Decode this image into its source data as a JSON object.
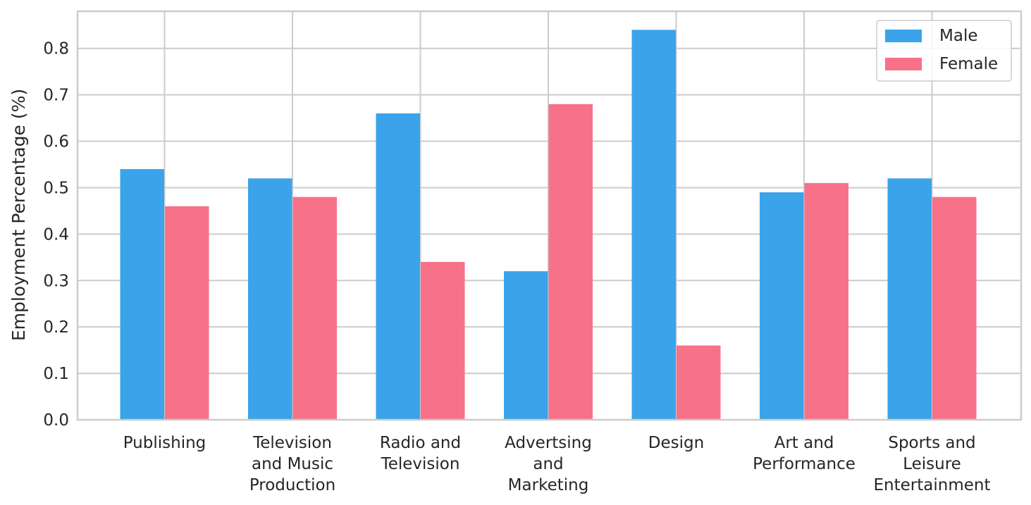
{
  "chart_data": {
    "type": "bar",
    "title": "",
    "xlabel": "",
    "ylabel": "Employment Percentage (%)",
    "ylim": [
      0,
      0.88
    ],
    "yticks": [
      "0.0",
      "0.1",
      "0.2",
      "0.3",
      "0.4",
      "0.5",
      "0.6",
      "0.7",
      "0.8"
    ],
    "grid": true,
    "legend_position": "top-right",
    "categories": [
      [
        "Publishing"
      ],
      [
        "Television",
        "and Music",
        "Production"
      ],
      [
        "Radio and",
        "Television"
      ],
      [
        "Advertsing",
        "and",
        "Marketing"
      ],
      [
        "Design"
      ],
      [
        "Art and",
        "Performance"
      ],
      [
        "Sports and",
        "Leisure",
        "Entertainment"
      ]
    ],
    "series": [
      {
        "name": "Male",
        "color": "#3ba3ea",
        "values": [
          0.54,
          0.52,
          0.66,
          0.32,
          0.84,
          0.49,
          0.52
        ]
      },
      {
        "name": "Female",
        "color": "#f77189",
        "values": [
          0.46,
          0.48,
          0.34,
          0.68,
          0.16,
          0.51,
          0.48
        ]
      }
    ]
  }
}
